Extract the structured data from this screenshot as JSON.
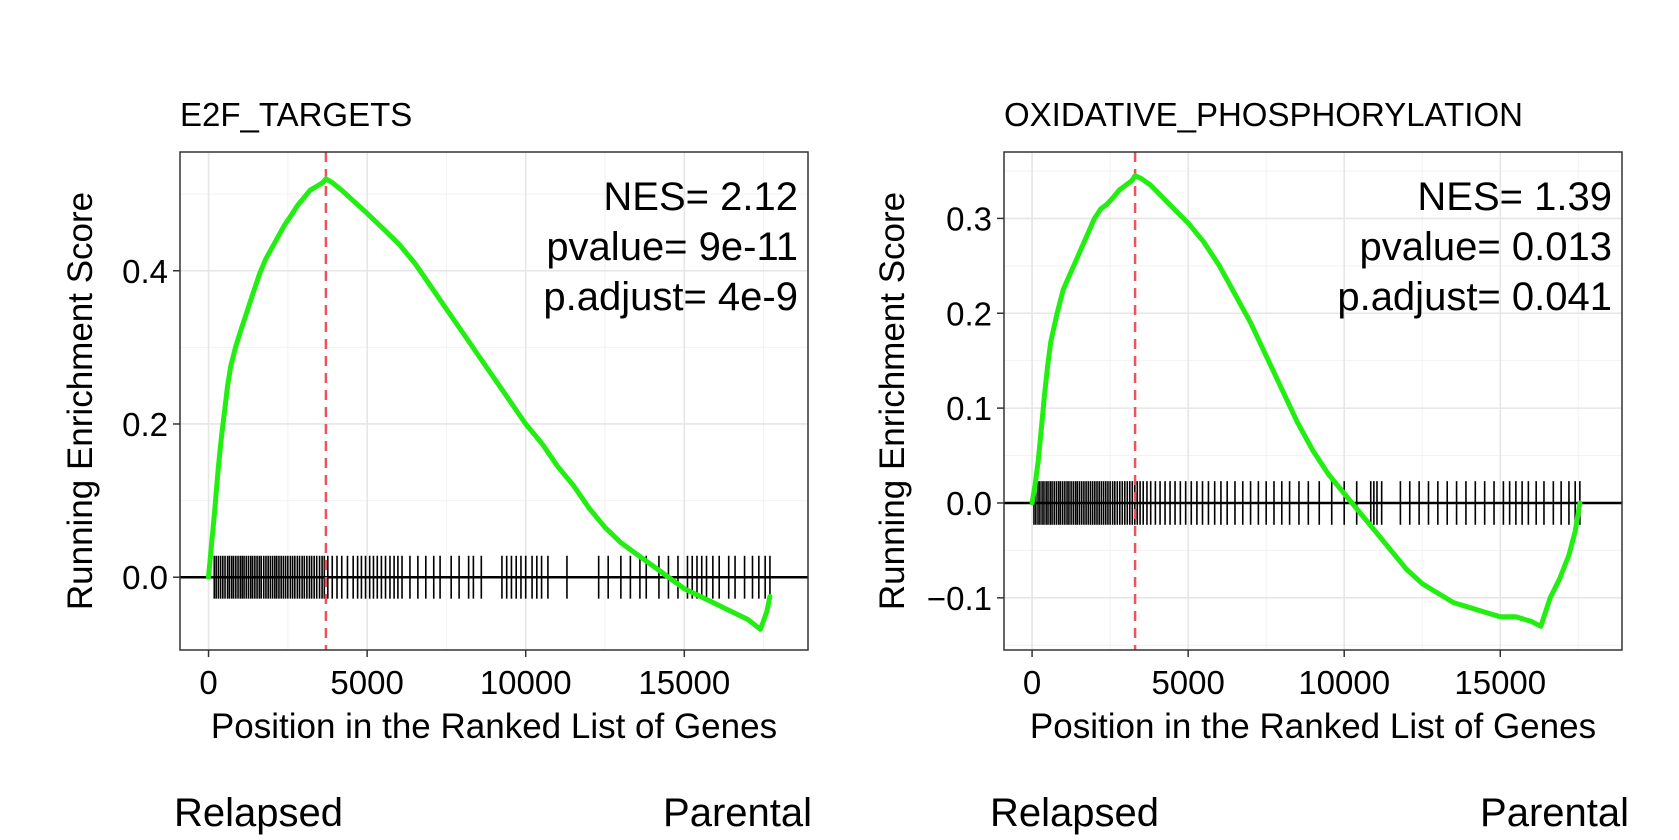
{
  "chart_data": [
    {
      "type": "line",
      "title": "E2F_TARGETS",
      "xlabel": "Position in the Ranked List of Genes",
      "ylabel": "Running Enrichment Score",
      "xlim": [
        -900,
        18900
      ],
      "ylim": [
        -0.095,
        0.555
      ],
      "xticks": [
        0,
        5000,
        10000,
        15000
      ],
      "xtick_labels": [
        "0",
        "5000",
        "10000",
        "15000"
      ],
      "yticks": [
        0.0,
        0.2,
        0.4
      ],
      "ytick_labels": [
        "0.0",
        "0.2",
        "0.4"
      ],
      "grid": true,
      "line_color": "#22ee11",
      "peak_position": 3700,
      "peak_color": "#e8555e",
      "stats": [
        "NES= 2.12",
        "pvalue= 9e-11",
        "p.adjust= 4e-9"
      ],
      "hit_band": [
        -0.028,
        0.028
      ],
      "hits": [
        180,
        240,
        310,
        380,
        450,
        520,
        600,
        660,
        730,
        790,
        860,
        930,
        1000,
        1060,
        1120,
        1190,
        1260,
        1330,
        1390,
        1460,
        1530,
        1600,
        1660,
        1740,
        1810,
        1880,
        1950,
        2020,
        2090,
        2150,
        2220,
        2290,
        2360,
        2430,
        2500,
        2580,
        2650,
        2720,
        2800,
        2870,
        2950,
        3020,
        3100,
        3180,
        3250,
        3330,
        3410,
        3500,
        3580,
        3650,
        3760,
        3900,
        4050,
        4200,
        4380,
        4560,
        4700,
        4820,
        4950,
        5080,
        5200,
        5320,
        5450,
        5580,
        5720,
        5850,
        5970,
        6100,
        6350,
        6600,
        6850,
        7100,
        7300,
        7650,
        7900,
        8200,
        8350,
        8600,
        9250,
        9400,
        9550,
        9700,
        9850,
        10000,
        10200,
        10350,
        10500,
        10700,
        11300,
        12300,
        12600,
        13000,
        13300,
        13600,
        13800,
        14200,
        14500,
        14800,
        15100,
        15250,
        15400,
        15550,
        15700,
        15900,
        16100,
        16400,
        16600,
        16900,
        17150,
        17350,
        17550,
        17700
      ],
      "series": [
        {
          "x": [
            0,
            100,
            200,
            300,
            400,
            500,
            600,
            700,
            850,
            1000,
            1200,
            1400,
            1600,
            1800,
            2000,
            2200,
            2400,
            2600,
            2800,
            3000,
            3200,
            3400,
            3600,
            3700,
            3900,
            4200,
            4600,
            5000,
            5500,
            6000,
            6500,
            7000,
            7500,
            8000,
            8500,
            9000,
            9500,
            10000,
            10500,
            11000,
            11500,
            12000,
            12500,
            13000,
            13500,
            14000,
            14500,
            15000,
            15500,
            16000,
            16500,
            17000,
            17400,
            17600,
            17700
          ],
          "y": [
            0.0,
            0.045,
            0.09,
            0.14,
            0.18,
            0.215,
            0.25,
            0.275,
            0.3,
            0.32,
            0.345,
            0.37,
            0.395,
            0.415,
            0.43,
            0.445,
            0.46,
            0.472,
            0.485,
            0.495,
            0.505,
            0.51,
            0.515,
            0.52,
            0.515,
            0.505,
            0.49,
            0.475,
            0.455,
            0.435,
            0.41,
            0.38,
            0.35,
            0.32,
            0.29,
            0.26,
            0.23,
            0.2,
            0.175,
            0.145,
            0.12,
            0.09,
            0.065,
            0.045,
            0.03,
            0.015,
            0.0,
            -0.015,
            -0.025,
            -0.035,
            -0.045,
            -0.055,
            -0.068,
            -0.045,
            -0.025
          ]
        }
      ]
    },
    {
      "type": "line",
      "title": "OXIDATIVE_PHOSPHORYLATION",
      "xlabel": "Position in the Ranked List of Genes",
      "ylabel": "Running Enrichment Score",
      "xlim": [
        -900,
        18900
      ],
      "ylim": [
        -0.155,
        0.37
      ],
      "xticks": [
        0,
        5000,
        10000,
        15000
      ],
      "xtick_labels": [
        "0",
        "5000",
        "10000",
        "15000"
      ],
      "yticks": [
        -0.1,
        0.0,
        0.1,
        0.2,
        0.3
      ],
      "ytick_labels": [
        "−0.1",
        "0.0",
        "0.1",
        "0.2",
        "0.3"
      ],
      "grid": true,
      "line_color": "#22ee11",
      "peak_position": 3300,
      "peak_color": "#e8555e",
      "stats": [
        "NES= 1.39",
        "pvalue= 0.013",
        "p.adjust= 0.041"
      ],
      "hit_band": [
        -0.023,
        0.023
      ],
      "hits": [
        60,
        120,
        190,
        250,
        320,
        380,
        450,
        510,
        580,
        640,
        710,
        780,
        850,
        910,
        980,
        1050,
        1120,
        1180,
        1250,
        1320,
        1390,
        1450,
        1520,
        1590,
        1660,
        1730,
        1800,
        1870,
        1940,
        2010,
        2080,
        2150,
        2220,
        2290,
        2360,
        2430,
        2500,
        2580,
        2650,
        2730,
        2810,
        2890,
        2970,
        3050,
        3130,
        3210,
        3290,
        3370,
        3460,
        3560,
        3680,
        3800,
        3950,
        4100,
        4260,
        4420,
        4580,
        4750,
        4920,
        5100,
        5280,
        5460,
        5650,
        5850,
        6050,
        6250,
        6500,
        6750,
        7000,
        7250,
        7500,
        7750,
        8000,
        8250,
        8550,
        8850,
        9200,
        9600,
        10000,
        10400,
        10850,
        10950,
        11050,
        11200,
        11800,
        12100,
        12400,
        12700,
        13000,
        13300,
        13600,
        13900,
        14200,
        14500,
        14800,
        15100,
        15300,
        15500,
        15700,
        15900,
        16150,
        16400,
        16700,
        16950,
        17200,
        17400,
        17550
      ],
      "series": [
        {
          "x": [
            0,
            100,
            200,
            300,
            400,
            500,
            600,
            800,
            1000,
            1200,
            1400,
            1600,
            1800,
            2000,
            2200,
            2400,
            2600,
            2800,
            3000,
            3200,
            3300,
            3500,
            3800,
            4100,
            4400,
            4700,
            5000,
            5500,
            6000,
            6500,
            7000,
            7500,
            8000,
            8500,
            9000,
            9500,
            10000,
            10500,
            11000,
            11500,
            12000,
            12500,
            13000,
            13500,
            14000,
            14500,
            15000,
            15500,
            16000,
            16300,
            16600,
            16900,
            17200,
            17400,
            17550
          ],
          "y": [
            0.0,
            0.02,
            0.045,
            0.08,
            0.115,
            0.145,
            0.17,
            0.2,
            0.225,
            0.24,
            0.255,
            0.27,
            0.285,
            0.3,
            0.31,
            0.315,
            0.322,
            0.33,
            0.335,
            0.34,
            0.345,
            0.342,
            0.335,
            0.325,
            0.315,
            0.305,
            0.295,
            0.275,
            0.25,
            0.22,
            0.19,
            0.155,
            0.12,
            0.085,
            0.055,
            0.03,
            0.01,
            -0.01,
            -0.03,
            -0.05,
            -0.07,
            -0.085,
            -0.095,
            -0.105,
            -0.11,
            -0.115,
            -0.12,
            -0.12,
            -0.125,
            -0.13,
            -0.1,
            -0.08,
            -0.055,
            -0.03,
            0.0
          ]
        }
      ]
    }
  ],
  "footer": {
    "left_panel": {
      "left": "Relapsed",
      "right": "Parental"
    },
    "right_panel": {
      "left": "Relapsed",
      "right": "Parental"
    }
  }
}
